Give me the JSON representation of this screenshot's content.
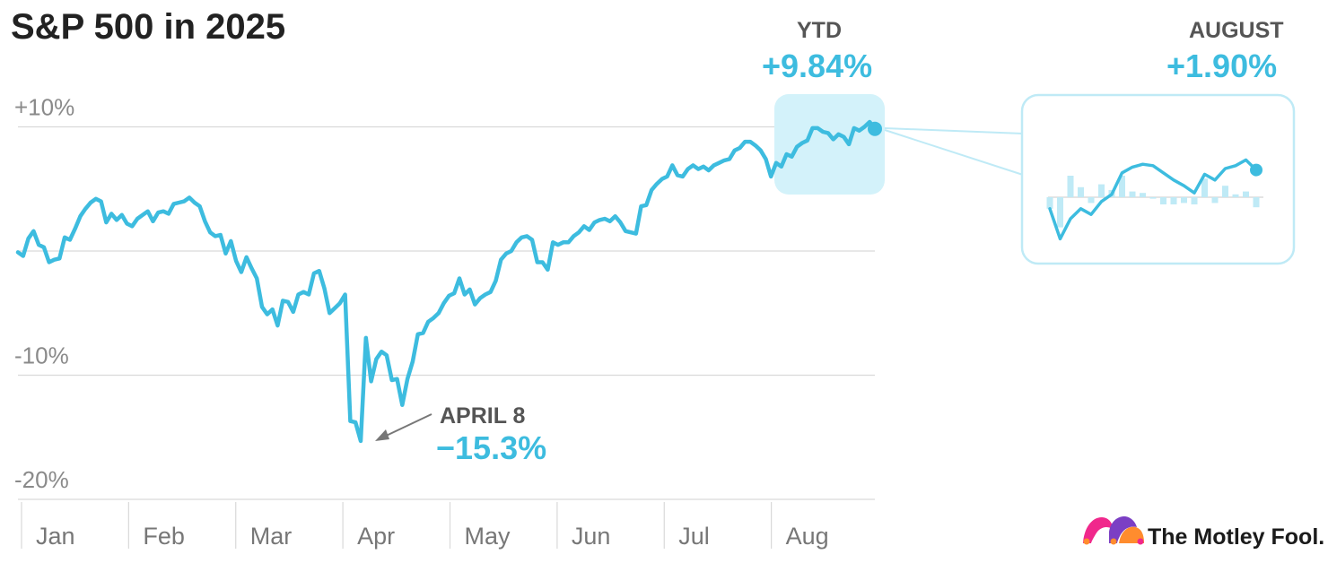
{
  "title": "S&P 500 in 2025",
  "colors": {
    "line": "#3dbcdf",
    "highlight": "#d3f2fa",
    "inset_bar": "#bfeaf6",
    "grid": "#d9d9d9",
    "text": "#222222"
  },
  "annotations": {
    "ytd": {
      "label": "YTD",
      "value": "+9.84%"
    },
    "low": {
      "label": "APRIL 8",
      "value": "−15.3%"
    },
    "august": {
      "label": "AUGUST",
      "value": "+1.90%"
    }
  },
  "brand": {
    "name": "The Motley Fool.",
    "logo_icon": "jester-hat-icon"
  },
  "chart_data": {
    "type": "line",
    "title": "S&P 500 in 2025",
    "unit": "%",
    "y_ticks": [
      {
        "value": 10,
        "label": "+10%"
      },
      {
        "value": -10,
        "label": "-10%"
      },
      {
        "value": -20,
        "label": "-20%"
      }
    ],
    "ylim": [
      -20,
      12
    ],
    "grid": true,
    "months": [
      "Jan",
      "Feb",
      "Mar",
      "Apr",
      "May",
      "Jun",
      "Jul",
      "Aug"
    ],
    "series": [
      {
        "values": [
          -0.1,
          -0.4,
          1.0,
          1.6,
          0.5,
          0.3,
          -0.9,
          -0.7,
          -0.6,
          1.1,
          0.9,
          1.8,
          2.8,
          3.4,
          3.9,
          4.2,
          4.0,
          2.3,
          3.0,
          2.5,
          2.9,
          2.2,
          2.0,
          2.6,
          2.9,
          3.2,
          2.4,
          3.1,
          3.2,
          3.0,
          3.8,
          3.9,
          4.0,
          4.3,
          3.9,
          3.6,
          2.4,
          1.5,
          1.2,
          1.3,
          -0.2,
          0.8,
          -0.8,
          -1.7,
          -0.5,
          -1.4,
          -2.2,
          -4.5,
          -5.1,
          -4.7,
          -6.0,
          -4.0,
          -4.1,
          -4.9,
          -3.5,
          -3.3,
          -3.5,
          -1.8,
          -1.6,
          -3.0,
          -5.0,
          -4.6,
          -4.2,
          -3.5,
          -13.7,
          -13.8,
          -15.3,
          -7.0,
          -10.5,
          -8.7,
          -8.1,
          -8.4,
          -10.4,
          -10.3,
          -12.4,
          -10.3,
          -8.9,
          -6.7,
          -6.6,
          -5.7,
          -5.4,
          -5.0,
          -4.2,
          -3.6,
          -3.4,
          -2.2,
          -3.5,
          -3.1,
          -4.3,
          -3.8,
          -3.5,
          -3.3,
          -2.4,
          -0.7,
          -0.2,
          0.0,
          0.7,
          1.1,
          1.2,
          0.9,
          -0.9,
          -0.9,
          -1.5,
          0.7,
          0.5,
          0.7,
          0.7,
          1.2,
          1.5,
          2.0,
          1.7,
          2.3,
          2.5,
          2.6,
          2.4,
          2.8,
          2.3,
          1.6,
          1.5,
          1.4,
          3.6,
          3.7,
          4.9,
          5.4,
          5.8,
          6.0,
          6.9,
          6.1,
          6.0,
          6.6,
          6.9,
          6.6,
          6.8,
          6.5,
          6.9,
          7.1,
          7.3,
          7.4,
          8.1,
          8.3,
          8.8,
          8.8,
          8.5,
          8.1,
          7.4,
          6.0,
          7.1,
          6.8,
          7.8,
          7.6,
          8.4,
          8.7,
          8.9,
          9.9,
          9.9,
          9.6,
          9.5,
          9.0,
          9.4,
          9.2,
          8.6,
          9.9,
          9.7,
          10.0,
          10.4,
          9.84
        ]
      }
    ],
    "inset": {
      "title": "AUGUST",
      "total": "+1.90%",
      "cumulative": [
        -0.8,
        -2.9,
        -1.5,
        -0.8,
        -1.2,
        -0.3,
        0.2,
        1.7,
        2.1,
        2.3,
        2.2,
        1.7,
        1.2,
        0.8,
        0.3,
        1.6,
        1.2,
        2.0,
        2.2,
        2.6,
        1.9
      ],
      "daily": [
        -0.8,
        -2.1,
        1.5,
        0.7,
        -0.4,
        0.9,
        0.5,
        1.5,
        0.4,
        0.3,
        -0.1,
        -0.5,
        -0.5,
        -0.4,
        -0.5,
        1.3,
        -0.4,
        0.8,
        0.2,
        0.4,
        -0.7
      ]
    }
  }
}
